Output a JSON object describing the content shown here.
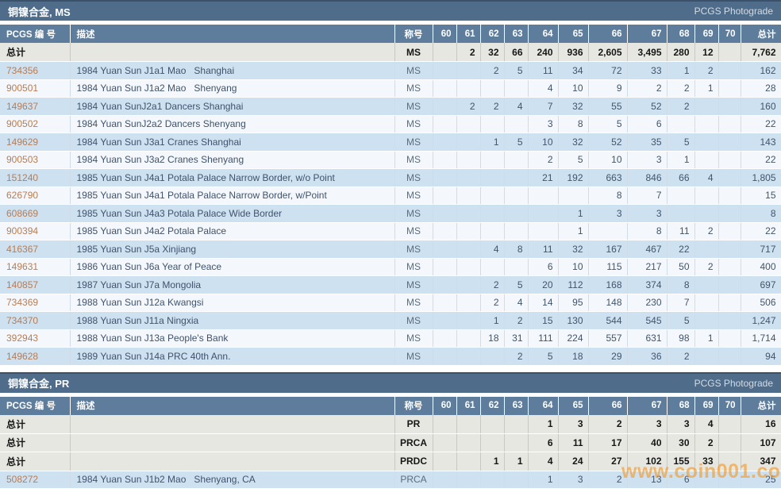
{
  "watermark": "www.coin001.com",
  "colors": {
    "titlebar_bg": "#4f6c8a",
    "header_bg": "#5e7d9c",
    "row_blue": "#cde1f1",
    "row_light": "#f4f8fc",
    "summary_bg": "#e7e7e2",
    "pcgs_link": "#b87c54",
    "watermark": "#f7941d"
  },
  "tables": [
    {
      "title": "铜镍合金, MS",
      "photograde_label": "PCGS Photograde",
      "columns": [
        "PCGS 编 号",
        "描述",
        "称号",
        "60",
        "61",
        "62",
        "63",
        "64",
        "65",
        "66",
        "67",
        "68",
        "69",
        "70",
        "总计"
      ],
      "summary_rows": [
        {
          "label": "总计",
          "desc": "",
          "designation": "MS",
          "grades": [
            "",
            "2",
            "32",
            "66",
            "240",
            "936",
            "2,605",
            "3,495",
            "280",
            "12",
            ""
          ],
          "total": "7,762"
        }
      ],
      "rows": [
        {
          "pcgs_no": "734356",
          "desc": "1984 Yuan Sun J1a1 Mao   Shanghai",
          "designation": "MS",
          "grades": [
            "",
            "",
            "2",
            "5",
            "11",
            "34",
            "72",
            "33",
            "1",
            "2",
            ""
          ],
          "total": "162"
        },
        {
          "pcgs_no": "900501",
          "desc": "1984 Yuan Sun J1a2 Mao   Shenyang",
          "designation": "MS",
          "grades": [
            "",
            "",
            "",
            "",
            "4",
            "10",
            "9",
            "2",
            "2",
            "1",
            ""
          ],
          "total": "28"
        },
        {
          "pcgs_no": "149637",
          "desc": "1984 Yuan SunJ2a1 Dancers Shanghai",
          "designation": "MS",
          "grades": [
            "",
            "2",
            "2",
            "4",
            "7",
            "32",
            "55",
            "52",
            "2",
            "",
            ""
          ],
          "total": "160"
        },
        {
          "pcgs_no": "900502",
          "desc": "1984 Yuan SunJ2a2 Dancers Shenyang",
          "designation": "MS",
          "grades": [
            "",
            "",
            "",
            "",
            "3",
            "8",
            "5",
            "6",
            "",
            "",
            ""
          ],
          "total": "22"
        },
        {
          "pcgs_no": "149629",
          "desc": "1984 Yuan Sun J3a1 Cranes Shanghai",
          "designation": "MS",
          "grades": [
            "",
            "",
            "1",
            "5",
            "10",
            "32",
            "52",
            "35",
            "5",
            "",
            ""
          ],
          "total": "143"
        },
        {
          "pcgs_no": "900503",
          "desc": "1984 Yuan Sun J3a2 Cranes Shenyang",
          "designation": "MS",
          "grades": [
            "",
            "",
            "",
            "",
            "2",
            "5",
            "10",
            "3",
            "1",
            "",
            ""
          ],
          "total": "22"
        },
        {
          "pcgs_no": "151240",
          "desc": "1985 Yuan Sun J4a1 Potala Palace Narrow Border, w/o Point",
          "designation": "MS",
          "grades": [
            "",
            "",
            "",
            "",
            "21",
            "192",
            "663",
            "846",
            "66",
            "4",
            ""
          ],
          "total": "1,805"
        },
        {
          "pcgs_no": "626790",
          "desc": "1985 Yuan Sun J4a1 Potala Palace Narrow Border, w/Point",
          "designation": "MS",
          "grades": [
            "",
            "",
            "",
            "",
            "",
            "",
            "8",
            "7",
            "",
            "",
            ""
          ],
          "total": "15"
        },
        {
          "pcgs_no": "608669",
          "desc": "1985 Yuan Sun J4a3 Potala Palace Wide Border",
          "designation": "MS",
          "grades": [
            "",
            "",
            "",
            "",
            "",
            "1",
            "3",
            "3",
            "",
            "",
            ""
          ],
          "total": "8"
        },
        {
          "pcgs_no": "900394",
          "desc": "1985 Yuan Sun J4a2 Potala Palace",
          "designation": "MS",
          "grades": [
            "",
            "",
            "",
            "",
            "",
            "1",
            "",
            "8",
            "11",
            "2",
            ""
          ],
          "total": "22"
        },
        {
          "pcgs_no": "416367",
          "desc": "1985 Yuan Sun J5a Xinjiang",
          "designation": "MS",
          "grades": [
            "",
            "",
            "4",
            "8",
            "11",
            "32",
            "167",
            "467",
            "22",
            "",
            ""
          ],
          "total": "717"
        },
        {
          "pcgs_no": "149631",
          "desc": "1986 Yuan Sun J6a Year of Peace",
          "designation": "MS",
          "grades": [
            "",
            "",
            "",
            "",
            "6",
            "10",
            "115",
            "217",
            "50",
            "2",
            ""
          ],
          "total": "400"
        },
        {
          "pcgs_no": "140857",
          "desc": "1987 Yuan Sun J7a Mongolia",
          "designation": "MS",
          "grades": [
            "",
            "",
            "2",
            "5",
            "20",
            "112",
            "168",
            "374",
            "8",
            "",
            ""
          ],
          "total": "697"
        },
        {
          "pcgs_no": "734369",
          "desc": "1988 Yuan Sun J12a Kwangsi",
          "designation": "MS",
          "grades": [
            "",
            "",
            "2",
            "4",
            "14",
            "95",
            "148",
            "230",
            "7",
            "",
            ""
          ],
          "total": "506"
        },
        {
          "pcgs_no": "734370",
          "desc": "1988 Yuan Sun J11a Ningxia",
          "designation": "MS",
          "grades": [
            "",
            "",
            "1",
            "2",
            "15",
            "130",
            "544",
            "545",
            "5",
            "",
            ""
          ],
          "total": "1,247"
        },
        {
          "pcgs_no": "392943",
          "desc": "1988 Yuan Sun J13a People's Bank",
          "designation": "MS",
          "grades": [
            "",
            "",
            "18",
            "31",
            "111",
            "224",
            "557",
            "631",
            "98",
            "1",
            ""
          ],
          "total": "1,714"
        },
        {
          "pcgs_no": "149628",
          "desc": "1989 Yuan Sun J14a PRC 40th Ann.",
          "designation": "MS",
          "grades": [
            "",
            "",
            "",
            "2",
            "5",
            "18",
            "29",
            "36",
            "2",
            "",
            ""
          ],
          "total": "94"
        }
      ]
    },
    {
      "title": "铜镍合金, PR",
      "photograde_label": "PCGS Photograde",
      "columns": [
        "PCGS 编 号",
        "描述",
        "称号",
        "60",
        "61",
        "62",
        "63",
        "64",
        "65",
        "66",
        "67",
        "68",
        "69",
        "70",
        "总计"
      ],
      "summary_rows": [
        {
          "label": "总计",
          "desc": "",
          "designation": "PR",
          "grades": [
            "",
            "",
            "",
            "",
            "1",
            "3",
            "2",
            "3",
            "3",
            "4",
            ""
          ],
          "total": "16"
        },
        {
          "label": "总计",
          "desc": "",
          "designation": "PRCA",
          "grades": [
            "",
            "",
            "",
            "",
            "6",
            "11",
            "17",
            "40",
            "30",
            "2",
            ""
          ],
          "total": "107"
        },
        {
          "label": "总计",
          "desc": "",
          "designation": "PRDC",
          "grades": [
            "",
            "",
            "1",
            "1",
            "4",
            "24",
            "27",
            "102",
            "155",
            "33",
            ""
          ],
          "total": "347"
        }
      ],
      "rows": [
        {
          "pcgs_no": "508272",
          "desc": "1984 Yuan Sun J1b2 Mao   Shenyang, CA",
          "designation": "PRCA",
          "grades": [
            "",
            "",
            "",
            "",
            "1",
            "3",
            "2",
            "13",
            "6",
            "",
            ""
          ],
          "total": "25"
        }
      ]
    }
  ]
}
